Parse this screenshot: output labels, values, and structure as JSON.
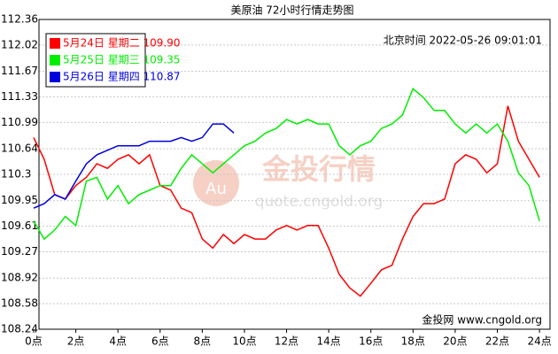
{
  "chart_data": {
    "type": "line",
    "title": "美原油 72小时行情走势图",
    "timestamp": "北京时间 2022-05-26 09:01:01",
    "watermark": {
      "badge": "Au",
      "name": "金投行情",
      "url": "quote.cngold.org"
    },
    "footer": "金投网 www.cngold.org",
    "x": [
      0,
      0.5,
      1,
      1.5,
      2,
      2.5,
      3,
      3.5,
      4,
      4.5,
      5,
      5.5,
      6,
      6.5,
      7,
      7.5,
      8,
      8.5,
      9,
      9.5,
      10,
      10.5,
      11,
      11.5,
      12,
      12.5,
      13,
      13.5,
      14,
      14.5,
      15,
      15.5,
      16,
      16.5,
      17,
      17.5,
      18,
      18.5,
      19,
      19.5,
      20,
      20.5,
      21,
      21.5,
      22,
      22.5,
      23,
      23.5,
      24
    ],
    "series": [
      {
        "name": "5月24日 星期二 109.90",
        "color": "#ff0000",
        "values": [
          110.79,
          110.5,
          110.03,
          109.97,
          110.15,
          110.26,
          110.44,
          110.38,
          110.5,
          110.56,
          110.44,
          110.56,
          110.15,
          110.09,
          109.85,
          109.79,
          109.44,
          109.32,
          109.5,
          109.38,
          109.5,
          109.44,
          109.44,
          109.56,
          109.62,
          109.56,
          109.62,
          109.62,
          109.32,
          108.97,
          108.79,
          108.68,
          108.85,
          109.03,
          109.09,
          109.44,
          109.74,
          109.91,
          109.91,
          109.97,
          110.44,
          110.56,
          110.5,
          110.32,
          110.44,
          111.21,
          110.74,
          110.5,
          110.26
        ]
      },
      {
        "name": "5月25日 星期三 109.35",
        "color": "#00ee00",
        "values": [
          109.68,
          109.44,
          109.56,
          109.74,
          109.62,
          110.21,
          110.26,
          109.97,
          110.15,
          109.91,
          110.03,
          110.09,
          110.15,
          110.15,
          110.38,
          110.56,
          110.44,
          110.32,
          110.44,
          110.56,
          110.68,
          110.74,
          110.85,
          110.91,
          111.03,
          110.97,
          111.03,
          110.97,
          110.97,
          110.68,
          110.56,
          110.68,
          110.74,
          110.91,
          110.97,
          111.09,
          111.44,
          111.32,
          111.15,
          111.15,
          110.97,
          110.85,
          110.97,
          110.85,
          110.97,
          110.74,
          110.32,
          110.15,
          109.68
        ]
      },
      {
        "name": "5月26日 星期四 110.87",
        "color": "#0000dd",
        "values": [
          109.85,
          109.91,
          110.03,
          109.97,
          110.21,
          110.44,
          110.56,
          110.62,
          110.68,
          110.68,
          110.68,
          110.74,
          110.74,
          110.74,
          110.79,
          110.74,
          110.79,
          110.97,
          110.97,
          110.85,
          null,
          null,
          null,
          null,
          null,
          null,
          null,
          null,
          null,
          null,
          null,
          null,
          null,
          null,
          null,
          null,
          null,
          null,
          null,
          null,
          null,
          null,
          null,
          null,
          null,
          null,
          null,
          null,
          null
        ]
      }
    ],
    "xlim": [
      0,
      24.5
    ],
    "ylim": [
      108.24,
      112.36
    ],
    "xticks": [
      {
        "value": 0,
        "label": "0点"
      },
      {
        "value": 2,
        "label": "2点"
      },
      {
        "value": 4,
        "label": "4点"
      },
      {
        "value": 6,
        "label": "6点"
      },
      {
        "value": 8,
        "label": "8点"
      },
      {
        "value": 10,
        "label": "10点"
      },
      {
        "value": 12,
        "label": "12点"
      },
      {
        "value": 14,
        "label": "14点"
      },
      {
        "value": 16,
        "label": "16点"
      },
      {
        "value": 18,
        "label": "18点"
      },
      {
        "value": 20,
        "label": "20点"
      },
      {
        "value": 22,
        "label": "22点"
      },
      {
        "value": 24,
        "label": "24点"
      }
    ],
    "yticks": [
      108.24,
      108.58,
      108.92,
      109.27,
      109.61,
      109.95,
      110.3,
      110.64,
      110.99,
      111.33,
      111.67,
      112.02,
      112.36
    ],
    "grid": true
  }
}
